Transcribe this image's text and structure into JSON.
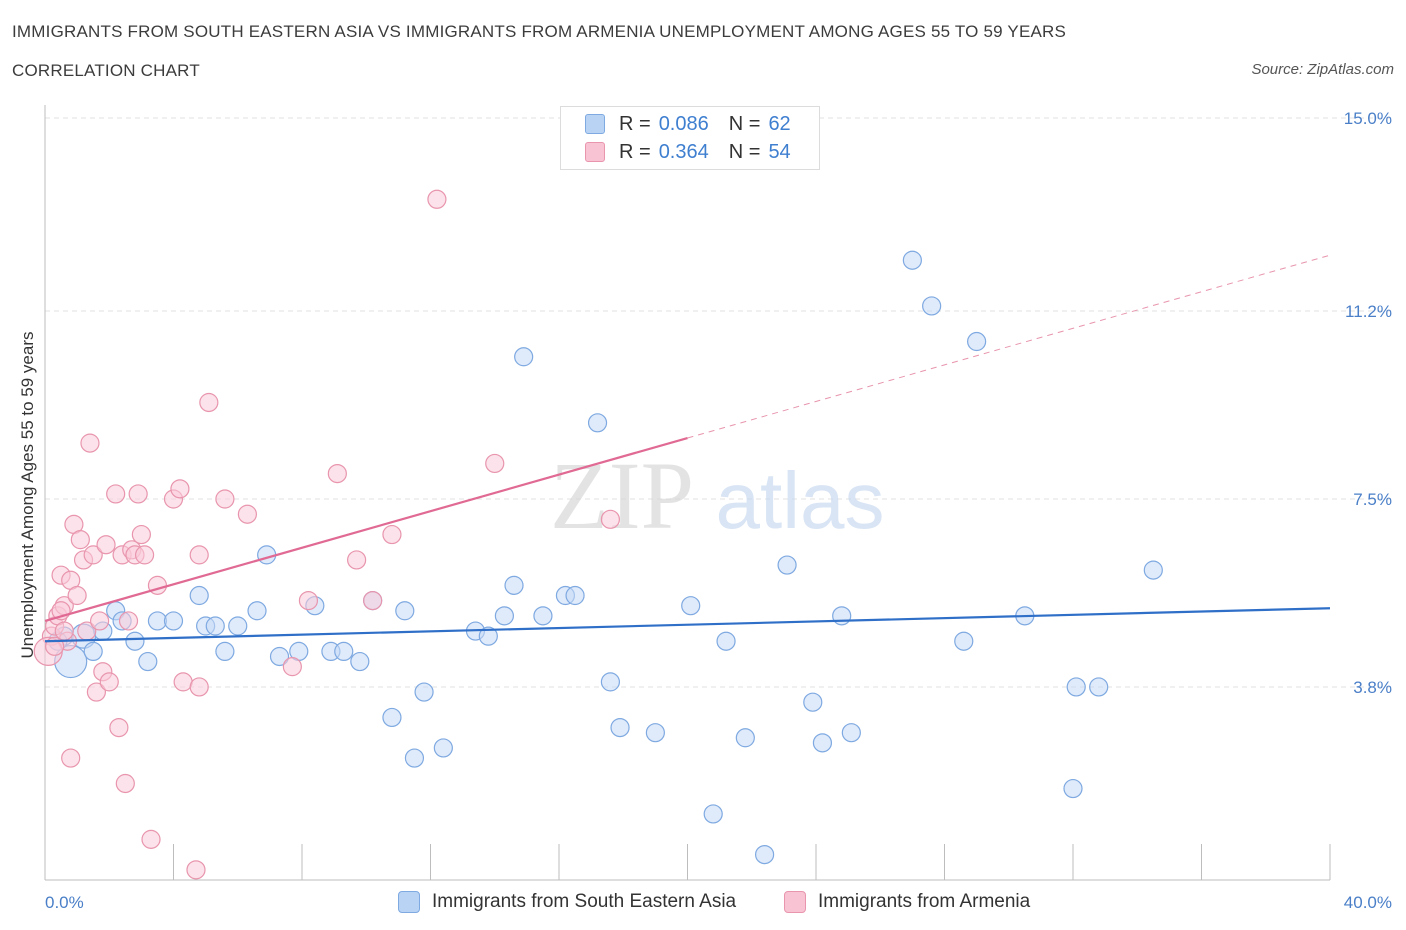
{
  "title": "IMMIGRANTS FROM SOUTH EASTERN ASIA VS IMMIGRANTS FROM ARMENIA UNEMPLOYMENT AMONG AGES 55 TO 59 YEARS",
  "subtitle": "CORRELATION CHART",
  "source": "Source: ZipAtlas.com",
  "watermark": {
    "zip": "ZIP",
    "atlas": "atlas"
  },
  "legend": {
    "r_label": "R =",
    "n_label": "N =",
    "rows": [
      {
        "r": "0.086",
        "n": "62",
        "color": "#b9d3f5",
        "border": "#7ea9e1"
      },
      {
        "r": "0.364",
        "n": "54",
        "color": "#f8c4d3",
        "border": "#e895ad"
      }
    ]
  },
  "chart_data": {
    "type": "scatter",
    "title": "IMMIGRANTS FROM SOUTH EASTERN ASIA VS IMMIGRANTS FROM ARMENIA UNEMPLOYMENT AMONG AGES 55 TO 59 YEARS",
    "xlabel": "",
    "ylabel": "Unemployment Among Ages 55 to 59 years",
    "xlim": [
      0,
      40
    ],
    "ylim": [
      0,
      15
    ],
    "x_tick_labels": [
      "0.0%",
      "40.0%"
    ],
    "y_ticks": [
      3.8,
      7.5,
      11.2,
      15.0
    ],
    "y_tick_labels": [
      "3.8%",
      "7.5%",
      "11.2%",
      "15.0%"
    ],
    "grid": "horizontal dashed",
    "legend_position": "bottom-center",
    "series": [
      {
        "name": "Immigrants from South Eastern Asia",
        "color": "#7ea9e1",
        "fill": "#c4d9f6",
        "trend": {
          "x": [
            0,
            40
          ],
          "y": [
            4.7,
            5.35
          ]
        },
        "points": [
          [
            0.6,
            4.8
          ],
          [
            0.8,
            4.3
          ],
          [
            1.2,
            4.8
          ],
          [
            1.5,
            4.5
          ],
          [
            1.8,
            4.9
          ],
          [
            2.2,
            5.3
          ],
          [
            2.4,
            5.1
          ],
          [
            2.8,
            4.7
          ],
          [
            3.2,
            4.3
          ],
          [
            3.5,
            5.1
          ],
          [
            4.0,
            5.1
          ],
          [
            4.8,
            5.6
          ],
          [
            5.0,
            5.0
          ],
          [
            5.3,
            5.0
          ],
          [
            5.6,
            4.5
          ],
          [
            6.0,
            5.0
          ],
          [
            6.6,
            5.3
          ],
          [
            6.9,
            6.4
          ],
          [
            7.3,
            4.4
          ],
          [
            7.9,
            4.5
          ],
          [
            8.4,
            5.4
          ],
          [
            8.9,
            4.5
          ],
          [
            9.3,
            4.5
          ],
          [
            9.8,
            4.3
          ],
          [
            10.2,
            5.5
          ],
          [
            10.8,
            3.2
          ],
          [
            11.2,
            5.3
          ],
          [
            11.5,
            2.4
          ],
          [
            11.8,
            3.7
          ],
          [
            12.4,
            2.6
          ],
          [
            13.4,
            4.9
          ],
          [
            13.8,
            4.8
          ],
          [
            14.3,
            5.2
          ],
          [
            14.6,
            5.8
          ],
          [
            14.9,
            10.3
          ],
          [
            15.5,
            5.2
          ],
          [
            16.2,
            5.6
          ],
          [
            16.5,
            5.6
          ],
          [
            17.2,
            9.0
          ],
          [
            17.6,
            3.9
          ],
          [
            17.9,
            3.0
          ],
          [
            19.0,
            2.9
          ],
          [
            20.1,
            5.4
          ],
          [
            20.8,
            1.3
          ],
          [
            21.2,
            4.7
          ],
          [
            21.8,
            2.8
          ],
          [
            22.4,
            0.5
          ],
          [
            23.1,
            6.2
          ],
          [
            23.9,
            3.5
          ],
          [
            24.2,
            2.7
          ],
          [
            24.8,
            5.2
          ],
          [
            25.1,
            2.9
          ],
          [
            27.0,
            12.2
          ],
          [
            27.6,
            11.3
          ],
          [
            28.6,
            4.7
          ],
          [
            29.0,
            10.6
          ],
          [
            30.5,
            5.2
          ],
          [
            32.0,
            1.8
          ],
          [
            32.1,
            3.8
          ],
          [
            32.8,
            3.8
          ],
          [
            34.5,
            6.1
          ],
          [
            0.4,
            4.7
          ]
        ]
      },
      {
        "name": "Immigrants from Armenia",
        "color": "#e895ad",
        "fill": "#f9cbd8",
        "trend": {
          "x": [
            0,
            20
          ],
          "y": [
            5.1,
            8.7
          ]
        },
        "trend_dashed": {
          "x": [
            20,
            40
          ],
          "y": [
            8.7,
            12.3
          ]
        },
        "points": [
          [
            0.2,
            4.8
          ],
          [
            0.3,
            5.0
          ],
          [
            0.4,
            5.2
          ],
          [
            0.5,
            6.0
          ],
          [
            0.6,
            5.4
          ],
          [
            0.7,
            4.7
          ],
          [
            0.8,
            5.9
          ],
          [
            0.8,
            2.4
          ],
          [
            0.9,
            7.0
          ],
          [
            1.0,
            5.6
          ],
          [
            1.1,
            6.7
          ],
          [
            1.2,
            6.3
          ],
          [
            1.3,
            4.9
          ],
          [
            1.4,
            8.6
          ],
          [
            1.5,
            6.4
          ],
          [
            1.6,
            3.7
          ],
          [
            1.7,
            5.1
          ],
          [
            1.8,
            4.1
          ],
          [
            1.9,
            6.6
          ],
          [
            2.0,
            3.9
          ],
          [
            2.2,
            7.6
          ],
          [
            2.3,
            3.0
          ],
          [
            2.4,
            6.4
          ],
          [
            2.5,
            1.9
          ],
          [
            2.6,
            5.1
          ],
          [
            2.7,
            6.5
          ],
          [
            2.8,
            6.4
          ],
          [
            2.9,
            7.6
          ],
          [
            3.0,
            6.8
          ],
          [
            3.1,
            6.4
          ],
          [
            3.3,
            0.8
          ],
          [
            3.5,
            5.8
          ],
          [
            4.0,
            7.5
          ],
          [
            4.2,
            7.7
          ],
          [
            4.3,
            3.9
          ],
          [
            4.7,
            0.2
          ],
          [
            4.8,
            6.4
          ],
          [
            4.8,
            3.8
          ],
          [
            5.1,
            9.4
          ],
          [
            5.6,
            7.5
          ],
          [
            6.3,
            7.2
          ],
          [
            7.7,
            4.2
          ],
          [
            8.2,
            5.5
          ],
          [
            9.1,
            8.0
          ],
          [
            9.7,
            6.3
          ],
          [
            10.2,
            5.5
          ],
          [
            10.8,
            6.8
          ],
          [
            12.2,
            13.4
          ],
          [
            14.0,
            8.2
          ],
          [
            17.6,
            7.1
          ],
          [
            0.1,
            4.5
          ],
          [
            0.3,
            4.6
          ],
          [
            0.5,
            5.3
          ],
          [
            0.6,
            4.9
          ]
        ]
      }
    ]
  },
  "bottom_legend": [
    {
      "label": "Immigrants from South Eastern Asia"
    },
    {
      "label": "Immigrants from Armenia"
    }
  ]
}
